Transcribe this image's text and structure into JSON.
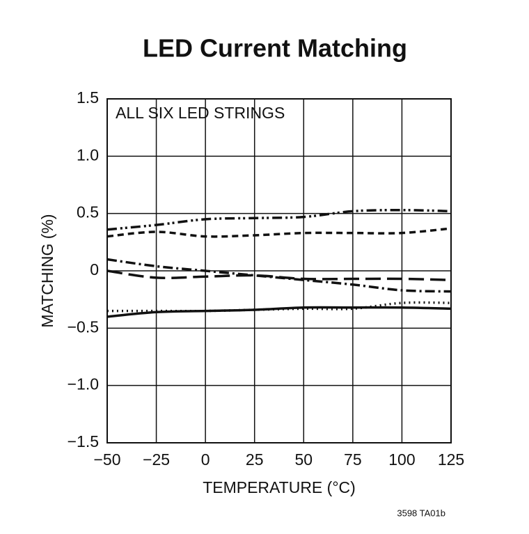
{
  "chart_data": {
    "type": "line",
    "title": "LED Current Matching",
    "annotation": "ALL SIX LED STRINGS",
    "xlabel": "TEMPERATURE (°C)",
    "ylabel": "MATCHING (%)",
    "footnote": "3598 TA01b",
    "x": [
      -50,
      -25,
      0,
      25,
      50,
      75,
      100,
      125
    ],
    "series": [
      {
        "color": "#111111",
        "dash": "14 5 3 4 3 5",
        "values": [
          0.36,
          0.4,
          0.45,
          0.46,
          0.47,
          0.52,
          0.53,
          0.52
        ]
      },
      {
        "color": "#111111",
        "dash": "9 6",
        "values": [
          0.3,
          0.34,
          0.3,
          0.31,
          0.33,
          0.33,
          0.33,
          0.37
        ]
      },
      {
        "color": "#111111",
        "dash": "14 5 3 5",
        "values": [
          0.1,
          0.04,
          0.0,
          -0.04,
          -0.08,
          -0.12,
          -0.17,
          -0.18
        ]
      },
      {
        "color": "#111111",
        "dash": "22 9",
        "values": [
          0.0,
          -0.06,
          -0.05,
          -0.04,
          -0.07,
          -0.07,
          -0.07,
          -0.08
        ]
      },
      {
        "color": "#111111",
        "dash": "none",
        "values": [
          -0.4,
          -0.36,
          -0.35,
          -0.34,
          -0.32,
          -0.32,
          -0.32,
          -0.33
        ]
      },
      {
        "color": "#111111",
        "dash": "2 5",
        "values": [
          -0.35,
          -0.35,
          -0.35,
          -0.34,
          -0.33,
          -0.33,
          -0.28,
          -0.28
        ]
      }
    ],
    "xlim": [
      -50,
      125
    ],
    "xticks": [
      {
        "value": -50,
        "label": "−50"
      },
      {
        "value": -25,
        "label": "−25"
      },
      0,
      25,
      50,
      75,
      100,
      125
    ],
    "ylim": [
      -1.5,
      1.5
    ],
    "yticks": [
      {
        "value": -1.5,
        "label": "−1.5"
      },
      {
        "value": -1,
        "label": "−1.0"
      },
      {
        "value": -0.5,
        "label": "−0.5"
      },
      0,
      0.5,
      {
        "value": 1,
        "label": "1.0"
      },
      1.5
    ],
    "grid": true
  }
}
